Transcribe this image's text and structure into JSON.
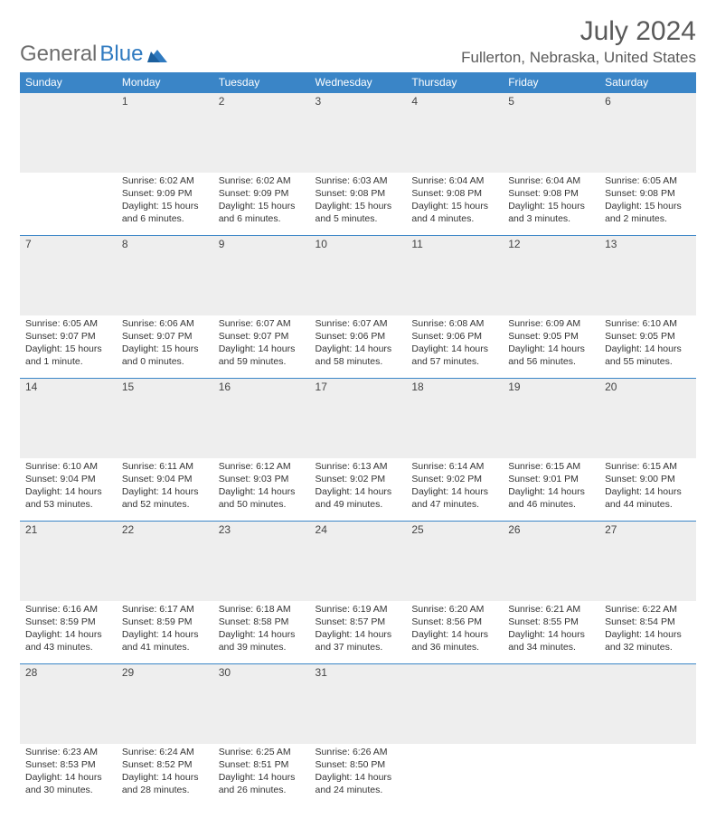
{
  "brand": {
    "part1": "General",
    "part2": "Blue"
  },
  "title": "July 2024",
  "location": "Fullerton, Nebraska, United States",
  "colors": {
    "header_bg": "#3a85c7",
    "header_fg": "#ffffff",
    "daynum_bg": "#eeeeee",
    "rule": "#3a85c7",
    "text": "#333333",
    "title_color": "#5a5a5a",
    "logo_gray": "#6d6d6d",
    "logo_blue": "#2f7ac0"
  },
  "weekdays": [
    "Sunday",
    "Monday",
    "Tuesday",
    "Wednesday",
    "Thursday",
    "Friday",
    "Saturday"
  ],
  "weeks": [
    [
      null,
      {
        "n": "1",
        "sr": "6:02 AM",
        "ss": "9:09 PM",
        "dl": "15 hours and 6 minutes."
      },
      {
        "n": "2",
        "sr": "6:02 AM",
        "ss": "9:09 PM",
        "dl": "15 hours and 6 minutes."
      },
      {
        "n": "3",
        "sr": "6:03 AM",
        "ss": "9:08 PM",
        "dl": "15 hours and 5 minutes."
      },
      {
        "n": "4",
        "sr": "6:04 AM",
        "ss": "9:08 PM",
        "dl": "15 hours and 4 minutes."
      },
      {
        "n": "5",
        "sr": "6:04 AM",
        "ss": "9:08 PM",
        "dl": "15 hours and 3 minutes."
      },
      {
        "n": "6",
        "sr": "6:05 AM",
        "ss": "9:08 PM",
        "dl": "15 hours and 2 minutes."
      }
    ],
    [
      {
        "n": "7",
        "sr": "6:05 AM",
        "ss": "9:07 PM",
        "dl": "15 hours and 1 minute."
      },
      {
        "n": "8",
        "sr": "6:06 AM",
        "ss": "9:07 PM",
        "dl": "15 hours and 0 minutes."
      },
      {
        "n": "9",
        "sr": "6:07 AM",
        "ss": "9:07 PM",
        "dl": "14 hours and 59 minutes."
      },
      {
        "n": "10",
        "sr": "6:07 AM",
        "ss": "9:06 PM",
        "dl": "14 hours and 58 minutes."
      },
      {
        "n": "11",
        "sr": "6:08 AM",
        "ss": "9:06 PM",
        "dl": "14 hours and 57 minutes."
      },
      {
        "n": "12",
        "sr": "6:09 AM",
        "ss": "9:05 PM",
        "dl": "14 hours and 56 minutes."
      },
      {
        "n": "13",
        "sr": "6:10 AM",
        "ss": "9:05 PM",
        "dl": "14 hours and 55 minutes."
      }
    ],
    [
      {
        "n": "14",
        "sr": "6:10 AM",
        "ss": "9:04 PM",
        "dl": "14 hours and 53 minutes."
      },
      {
        "n": "15",
        "sr": "6:11 AM",
        "ss": "9:04 PM",
        "dl": "14 hours and 52 minutes."
      },
      {
        "n": "16",
        "sr": "6:12 AM",
        "ss": "9:03 PM",
        "dl": "14 hours and 50 minutes."
      },
      {
        "n": "17",
        "sr": "6:13 AM",
        "ss": "9:02 PM",
        "dl": "14 hours and 49 minutes."
      },
      {
        "n": "18",
        "sr": "6:14 AM",
        "ss": "9:02 PM",
        "dl": "14 hours and 47 minutes."
      },
      {
        "n": "19",
        "sr": "6:15 AM",
        "ss": "9:01 PM",
        "dl": "14 hours and 46 minutes."
      },
      {
        "n": "20",
        "sr": "6:15 AM",
        "ss": "9:00 PM",
        "dl": "14 hours and 44 minutes."
      }
    ],
    [
      {
        "n": "21",
        "sr": "6:16 AM",
        "ss": "8:59 PM",
        "dl": "14 hours and 43 minutes."
      },
      {
        "n": "22",
        "sr": "6:17 AM",
        "ss": "8:59 PM",
        "dl": "14 hours and 41 minutes."
      },
      {
        "n": "23",
        "sr": "6:18 AM",
        "ss": "8:58 PM",
        "dl": "14 hours and 39 minutes."
      },
      {
        "n": "24",
        "sr": "6:19 AM",
        "ss": "8:57 PM",
        "dl": "14 hours and 37 minutes."
      },
      {
        "n": "25",
        "sr": "6:20 AM",
        "ss": "8:56 PM",
        "dl": "14 hours and 36 minutes."
      },
      {
        "n": "26",
        "sr": "6:21 AM",
        "ss": "8:55 PM",
        "dl": "14 hours and 34 minutes."
      },
      {
        "n": "27",
        "sr": "6:22 AM",
        "ss": "8:54 PM",
        "dl": "14 hours and 32 minutes."
      }
    ],
    [
      {
        "n": "28",
        "sr": "6:23 AM",
        "ss": "8:53 PM",
        "dl": "14 hours and 30 minutes."
      },
      {
        "n": "29",
        "sr": "6:24 AM",
        "ss": "8:52 PM",
        "dl": "14 hours and 28 minutes."
      },
      {
        "n": "30",
        "sr": "6:25 AM",
        "ss": "8:51 PM",
        "dl": "14 hours and 26 minutes."
      },
      {
        "n": "31",
        "sr": "6:26 AM",
        "ss": "8:50 PM",
        "dl": "14 hours and 24 minutes."
      },
      null,
      null,
      null
    ]
  ],
  "labels": {
    "sunrise": "Sunrise:",
    "sunset": "Sunset:",
    "daylight": "Daylight:"
  }
}
